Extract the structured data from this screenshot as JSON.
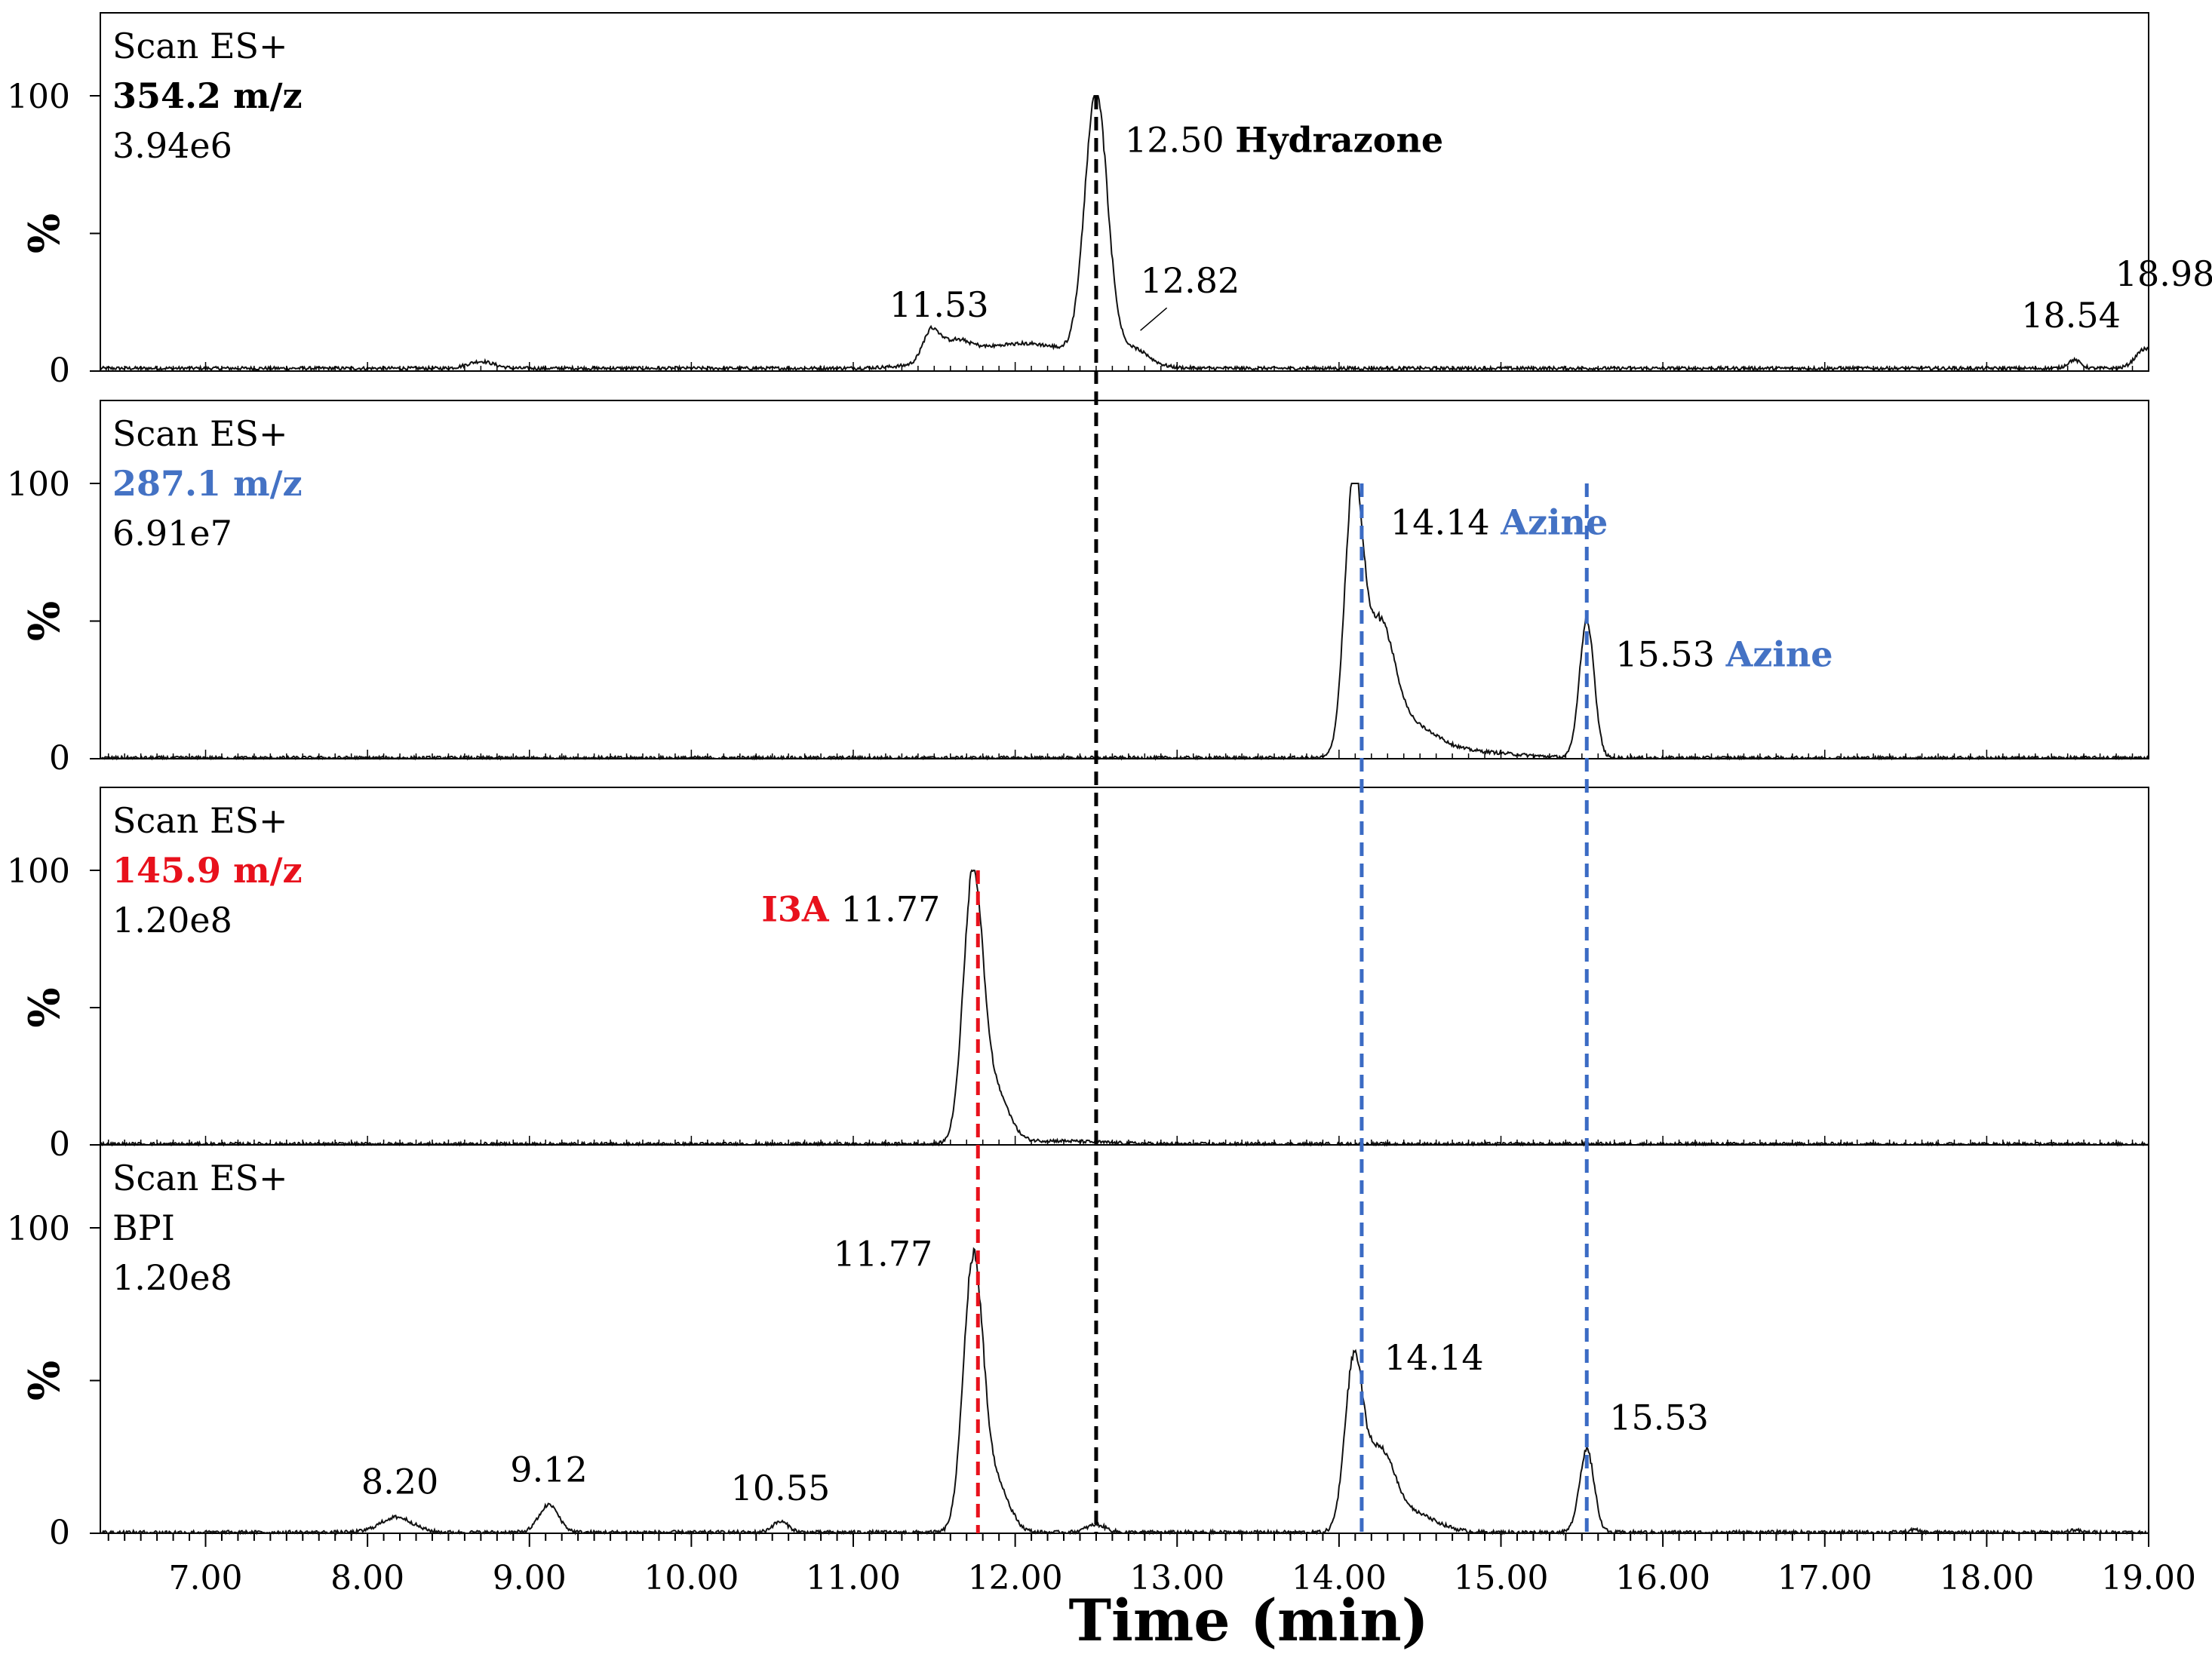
{
  "chart_data": {
    "type": "line",
    "x_axis": {
      "label": "Time (min)",
      "range": [
        6.35,
        19.0
      ],
      "ticks": [
        "7.00",
        "8.00",
        "9.00",
        "10.00",
        "11.00",
        "12.00",
        "13.00",
        "14.00",
        "15.00",
        "16.00",
        "17.00",
        "18.00",
        "19.00"
      ]
    },
    "y_axis": {
      "label": "%",
      "range": [
        0,
        100
      ],
      "ticks": [
        "0",
        "100"
      ]
    },
    "colors": {
      "black": "#000000",
      "blue": "#4472c4",
      "red": "#e8111c",
      "guide_blue": "#3b6bc4",
      "guide_red": "#e8111c"
    },
    "panels": [
      {
        "mode": "Scan ES+",
        "channel": "354.2 m/z",
        "channel_color": "#000000",
        "intensity": "3.94e6",
        "baseline": 1.0,
        "peaks": [
          {
            "rt": 8.7,
            "height": 2.5,
            "sigma": 0.08
          },
          {
            "rt": 11.48,
            "height": 10,
            "sigma": 0.05
          },
          {
            "rt": 11.62,
            "height": 6,
            "sigma": 0.1
          },
          {
            "rt": 12.05,
            "height": 9,
            "sigma": 0.35
          },
          {
            "rt": 12.5,
            "height": 96,
            "sigma": 0.07
          },
          {
            "rt": 12.72,
            "height": 6,
            "sigma": 0.1
          },
          {
            "rt": 18.54,
            "height": 3,
            "sigma": 0.04
          },
          {
            "rt": 18.98,
            "height": 7,
            "sigma": 0.06
          }
        ],
        "labels": [
          {
            "text": "12.50",
            "x": 12.5,
            "y": 96,
            "tag": "Hydrazone",
            "tag_color": "#000000"
          },
          {
            "text": "11.53",
            "x": 11.53,
            "y": 12
          },
          {
            "text": "12.82",
            "x": 12.82,
            "y": 12
          },
          {
            "text": "18.54",
            "x": 18.54,
            "y": 5
          },
          {
            "text": "18.98",
            "x": 18.98,
            "y": 9
          }
        ]
      },
      {
        "mode": "Scan ES+",
        "channel": "287.1 m/z",
        "channel_color": "#4472c4",
        "intensity": "6.91e7",
        "baseline": 0.3,
        "peaks": [
          {
            "rt": 14.09,
            "height": 95,
            "sigma": 0.055
          },
          {
            "rt": 14.25,
            "height": 45,
            "sigma": 0.09
          },
          {
            "rt": 14.45,
            "height": 10,
            "sigma": 0.15
          },
          {
            "rt": 14.75,
            "height": 2.5,
            "sigma": 0.3
          },
          {
            "rt": 15.53,
            "height": 50,
            "sigma": 0.045
          }
        ],
        "labels": [
          {
            "text": "14.14",
            "x": 14.14,
            "y": 98,
            "tag": "Azine",
            "tag_color": "#4472c4"
          },
          {
            "text": "15.53",
            "x": 15.53,
            "y": 50,
            "tag": "Azine",
            "tag_color": "#4472c4"
          }
        ]
      },
      {
        "mode": "Scan ES+",
        "channel": "145.9 m/z",
        "channel_color": "#e8111c",
        "intensity": "1.20e8",
        "baseline": 0.3,
        "peaks": [
          {
            "rt": 11.74,
            "height": 97,
            "sigma": 0.06
          },
          {
            "rt": 11.88,
            "height": 18,
            "sigma": 0.08
          },
          {
            "rt": 12.2,
            "height": 1.2,
            "sigma": 0.3
          }
        ],
        "labels": [
          {
            "text": "11.77",
            "x": 11.77,
            "y": 98,
            "prefix": "I3A",
            "prefix_color": "#e8111c"
          }
        ]
      },
      {
        "mode": "Scan ES+",
        "channel": "BPI",
        "channel_color": "#000000",
        "intensity": "1.20e8",
        "baseline": 0.3,
        "peaks": [
          {
            "rt": 8.18,
            "height": 5,
            "sigma": 0.1
          },
          {
            "rt": 9.12,
            "height": 9,
            "sigma": 0.06
          },
          {
            "rt": 10.55,
            "height": 3.5,
            "sigma": 0.05
          },
          {
            "rt": 11.74,
            "height": 88,
            "sigma": 0.06
          },
          {
            "rt": 11.88,
            "height": 16,
            "sigma": 0.08
          },
          {
            "rt": 12.5,
            "height": 2.5,
            "sigma": 0.06
          },
          {
            "rt": 14.09,
            "height": 53,
            "sigma": 0.055
          },
          {
            "rt": 14.25,
            "height": 25,
            "sigma": 0.09
          },
          {
            "rt": 14.45,
            "height": 6,
            "sigma": 0.15
          },
          {
            "rt": 15.53,
            "height": 27,
            "sigma": 0.045
          },
          {
            "rt": 17.55,
            "height": 0.8,
            "sigma": 0.03
          },
          {
            "rt": 18.54,
            "height": 0.8,
            "sigma": 0.03
          }
        ],
        "labels": [
          {
            "text": "8.20",
            "x": 8.2,
            "y": 6
          },
          {
            "text": "9.12",
            "x": 9.12,
            "y": 10
          },
          {
            "text": "10.55",
            "x": 10.55,
            "y": 4
          },
          {
            "text": "11.77",
            "x": 11.77,
            "y": 90
          },
          {
            "text": "14.14",
            "x": 14.14,
            "y": 56
          },
          {
            "text": "15.53",
            "x": 15.53,
            "y": 29
          }
        ]
      }
    ],
    "guides": [
      {
        "x": 12.5,
        "color": "#000000",
        "from_panel": 0,
        "to_panel": 3
      },
      {
        "x": 14.14,
        "color": "#3b6bc4",
        "from_panel": 1,
        "to_panel": 3
      },
      {
        "x": 15.53,
        "color": "#3b6bc4",
        "from_panel": 1,
        "to_panel": 3
      },
      {
        "x": 11.77,
        "color": "#e8111c",
        "from_panel": 2,
        "to_panel": 3
      }
    ]
  }
}
